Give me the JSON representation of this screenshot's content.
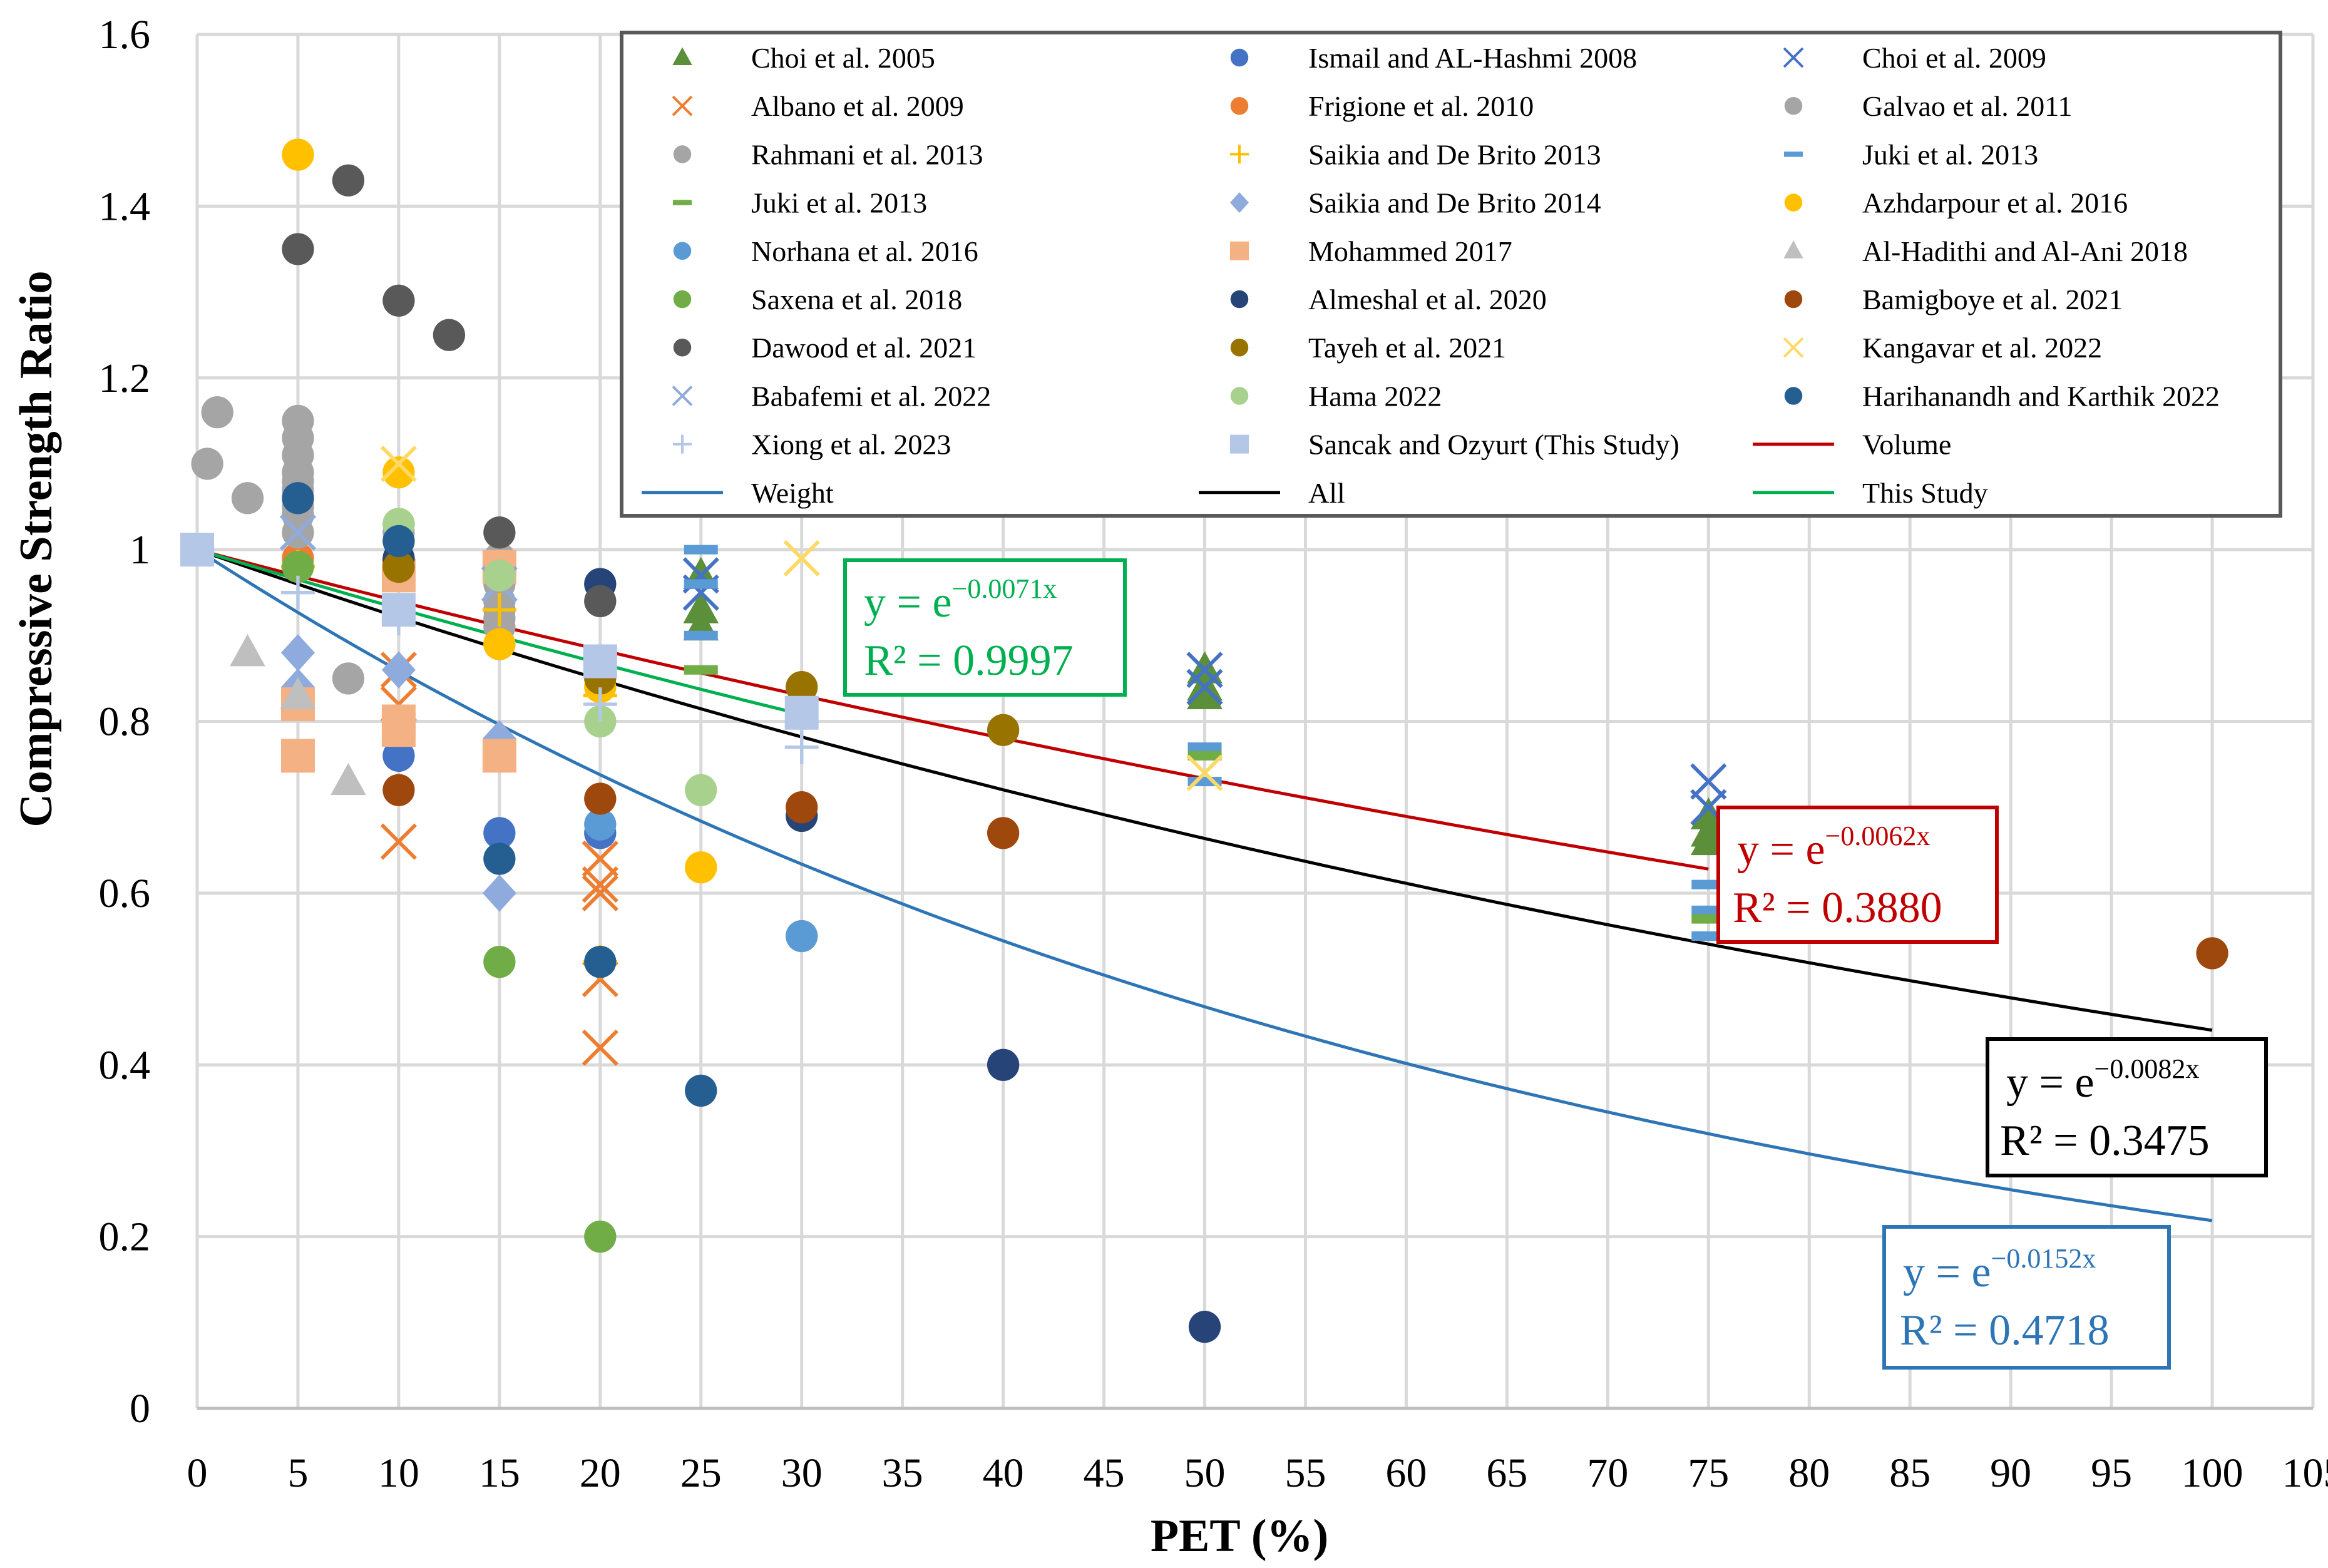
{
  "chart_data": {
    "type": "scatter",
    "title": "",
    "xlabel": "PET (%)",
    "ylabel": "Compressive Strength Ratio",
    "xlim": [
      0,
      105
    ],
    "ylim": [
      0,
      1.6
    ],
    "x_ticks": [
      "0",
      "5",
      "10",
      "15",
      "20",
      "25",
      "30",
      "35",
      "40",
      "45",
      "50",
      "55",
      "60",
      "65",
      "70",
      "75",
      "80",
      "85",
      "90",
      "95",
      "100",
      "105"
    ],
    "y_ticks": [
      "0",
      "0.2",
      "0.4",
      "0.6",
      "0.8",
      "1",
      "1.2",
      "1.4",
      "1.6"
    ],
    "grid": true,
    "legend_position": "top-right",
    "series": [
      {
        "name": "Choi et al. 2005",
        "marker": "triangle",
        "color": "#5b8f3a",
        "points": [
          [
            25,
            0.97
          ],
          [
            25,
            0.93
          ],
          [
            25,
            0.91
          ],
          [
            50,
            0.86
          ],
          [
            50,
            0.84
          ],
          [
            50,
            0.83
          ],
          [
            75,
            0.69
          ],
          [
            75,
            0.67
          ],
          [
            75,
            0.66
          ]
        ]
      },
      {
        "name": "Ismail and AL-Hashmi 2008",
        "marker": "circle",
        "color": "#4472c4",
        "points": [
          [
            10,
            0.76
          ],
          [
            15,
            0.67
          ],
          [
            20,
            0.67
          ]
        ]
      },
      {
        "name": "Choi et al. 2009",
        "marker": "x",
        "color": "#4472c4",
        "points": [
          [
            25,
            0.97
          ],
          [
            25,
            0.95
          ],
          [
            50,
            0.86
          ],
          [
            50,
            0.84
          ],
          [
            75,
            0.73
          ],
          [
            75,
            0.7
          ]
        ]
      },
      {
        "name": "Albano et al. 2009",
        "marker": "x",
        "color": "#ed7d31",
        "points": [
          [
            10,
            0.86
          ],
          [
            10,
            0.82
          ],
          [
            10,
            0.66
          ],
          [
            20,
            0.64
          ],
          [
            20,
            0.61
          ],
          [
            20,
            0.6
          ],
          [
            20,
            0.5
          ],
          [
            20,
            0.42
          ]
        ]
      },
      {
        "name": "Frigione et al. 2010",
        "marker": "circle",
        "color": "#ed7d31",
        "points": [
          [
            5,
            0.99
          ],
          [
            10,
            0.98
          ]
        ]
      },
      {
        "name": "Galvao et al. 2011",
        "marker": "circle",
        "color": "#a5a5a5",
        "points": [
          [
            0.5,
            1.1
          ],
          [
            1,
            1.16
          ],
          [
            2.5,
            1.06
          ],
          [
            5,
            1.15
          ],
          [
            5,
            1.13
          ],
          [
            5,
            1.11
          ],
          [
            5,
            1.09
          ],
          [
            5,
            1.07
          ],
          [
            5,
            1.05
          ],
          [
            5,
            1.02
          ],
          [
            7.5,
            0.85
          ],
          [
            10,
            1.03
          ],
          [
            10,
            1.01
          ],
          [
            15,
            0.99
          ],
          [
            15,
            0.96
          ],
          [
            15,
            0.93
          ],
          [
            15,
            0.91
          ],
          [
            15,
            0.89
          ]
        ]
      },
      {
        "name": "Rahmani et al. 2013",
        "marker": "circle",
        "color": "#a5a5a5",
        "points": [
          [
            5,
            1.08
          ],
          [
            5,
            1.04
          ],
          [
            10,
            1.02
          ],
          [
            15,
            0.94
          ],
          [
            15,
            0.92
          ]
        ]
      },
      {
        "name": "Saikia and De Brito 2013",
        "marker": "plus",
        "color": "#ffc000",
        "points": [
          [
            5,
            0.98
          ],
          [
            15,
            0.93
          ],
          [
            20,
            0.83
          ],
          [
            20,
            0.52
          ]
        ]
      },
      {
        "name": "Juki et al. 2013",
        "marker": "dash",
        "color": "#5b9bd5",
        "points": [
          [
            25,
            1.0
          ],
          [
            25,
            0.96
          ],
          [
            25,
            0.9
          ],
          [
            50,
            0.77
          ],
          [
            50,
            0.73
          ],
          [
            75,
            0.61
          ],
          [
            75,
            0.58
          ],
          [
            75,
            0.55
          ]
        ]
      },
      {
        "name": "Juki et al. 2013",
        "marker": "dash",
        "color": "#70ad47",
        "points": [
          [
            25,
            0.86
          ],
          [
            50,
            0.76
          ],
          [
            75,
            0.57
          ]
        ]
      },
      {
        "name": "Saikia and De Brito 2014",
        "marker": "diamond",
        "color": "#8faadc",
        "points": [
          [
            5,
            0.88
          ],
          [
            5,
            0.84
          ],
          [
            10,
            0.86
          ],
          [
            15,
            0.78
          ],
          [
            15,
            0.6
          ]
        ]
      },
      {
        "name": "Azhdarpour et al. 2016",
        "marker": "circle",
        "color": "#ffc000",
        "points": [
          [
            5,
            1.46
          ],
          [
            10,
            1.09
          ],
          [
            15,
            0.89
          ],
          [
            20,
            0.84
          ],
          [
            25,
            0.63
          ],
          [
            30,
            0.55
          ]
        ]
      },
      {
        "name": "Norhana et al. 2016",
        "marker": "circle",
        "color": "#5b9bd5",
        "points": [
          [
            20,
            0.68
          ],
          [
            30,
            0.55
          ]
        ]
      },
      {
        "name": "Mohammed 2017",
        "marker": "square",
        "color": "#f4b183",
        "points": [
          [
            5,
            0.82
          ],
          [
            5,
            0.76
          ],
          [
            10,
            0.97
          ],
          [
            10,
            0.8
          ],
          [
            10,
            0.79
          ],
          [
            15,
            0.98
          ],
          [
            15,
            0.76
          ]
        ]
      },
      {
        "name": "Al-Hadithi and Al-Ani 2018",
        "marker": "triangle",
        "color": "#bfbfbf",
        "points": [
          [
            2.5,
            0.88
          ],
          [
            5,
            0.83
          ],
          [
            7.5,
            0.73
          ]
        ]
      },
      {
        "name": "Saxena et al. 2018",
        "marker": "circle",
        "color": "#70ad47",
        "points": [
          [
            5,
            0.98
          ],
          [
            15,
            0.52
          ],
          [
            20,
            0.2
          ]
        ]
      },
      {
        "name": "Almeshal et al. 2020",
        "marker": "circle",
        "color": "#264478",
        "points": [
          [
            10,
            0.99
          ],
          [
            20,
            0.96
          ],
          [
            30,
            0.69
          ],
          [
            40,
            0.4
          ],
          [
            50,
            0.095
          ]
        ]
      },
      {
        "name": "Bamigboye et al. 2021",
        "marker": "circle",
        "color": "#9e480e",
        "points": [
          [
            10,
            0.72
          ],
          [
            20,
            0.71
          ],
          [
            30,
            0.7
          ],
          [
            40,
            0.67
          ],
          [
            100,
            0.53
          ]
        ]
      },
      {
        "name": "Dawood et al. 2021",
        "marker": "circle",
        "color": "#595959",
        "points": [
          [
            5,
            1.35
          ],
          [
            7.5,
            1.43
          ],
          [
            10,
            1.29
          ],
          [
            12.5,
            1.25
          ],
          [
            15,
            1.02
          ],
          [
            20,
            0.94
          ]
        ]
      },
      {
        "name": "Tayeh et al. 2021",
        "marker": "circle",
        "color": "#997300",
        "points": [
          [
            10,
            0.98
          ],
          [
            20,
            0.85
          ],
          [
            30,
            0.84
          ],
          [
            40,
            0.79
          ]
        ]
      },
      {
        "name": "Kangavar et al. 2022",
        "marker": "x",
        "color": "#ffd966",
        "points": [
          [
            10,
            1.1
          ],
          [
            30,
            0.99
          ],
          [
            50,
            0.74
          ]
        ]
      },
      {
        "name": "Babafemi et al. 2022",
        "marker": "x",
        "color": "#8faadc",
        "points": [
          [
            5,
            1.02
          ],
          [
            15,
            0.96
          ]
        ]
      },
      {
        "name": "Hama 2022",
        "marker": "circle",
        "color": "#a9d18e",
        "points": [
          [
            10,
            1.03
          ],
          [
            15,
            0.97
          ],
          [
            20,
            0.8
          ],
          [
            25,
            0.72
          ]
        ]
      },
      {
        "name": "Harihanandh and Karthik 2022",
        "marker": "circle",
        "color": "#255e91",
        "points": [
          [
            5,
            1.06
          ],
          [
            10,
            1.01
          ],
          [
            15,
            0.64
          ],
          [
            20,
            0.52
          ],
          [
            25,
            0.37
          ]
        ]
      },
      {
        "name": "Xiong et al. 2023",
        "marker": "plus",
        "color": "#b4c7e7",
        "points": [
          [
            5,
            0.95
          ],
          [
            10,
            0.92
          ],
          [
            20,
            0.82
          ],
          [
            30,
            0.77
          ]
        ]
      },
      {
        "name": "Sancak and Ozyurt (This Study)",
        "marker": "square",
        "color": "#b4c7e7",
        "points": [
          [
            0,
            1.0
          ],
          [
            10,
            0.93
          ],
          [
            20,
            0.87
          ],
          [
            30,
            0.81
          ]
        ]
      }
    ],
    "trendlines": [
      {
        "name": "Volume",
        "color": "#c00000",
        "k": -0.0062,
        "x_range": [
          0,
          75
        ],
        "equation": "y = e",
        "exponent": "−0.0062x",
        "r2": "R² = 0.3880"
      },
      {
        "name": "Weight",
        "color": "#2e75b6",
        "k": -0.0152,
        "x_range": [
          0,
          100
        ],
        "equation": "y = e",
        "exponent": "−0.0152x",
        "r2": "R² = 0.4718"
      },
      {
        "name": "All",
        "color": "#000000",
        "k": -0.0082,
        "x_range": [
          0,
          100
        ],
        "equation": "y = e",
        "exponent": "−0.0082x",
        "r2": "R² = 0.3475"
      },
      {
        "name": "This Study",
        "color": "#00b050",
        "k": -0.0071,
        "x_range": [
          0,
          30
        ],
        "equation": "y = e",
        "exponent": "−0.0071x",
        "r2": "R² = 0.9997"
      }
    ]
  },
  "legend_line_labels": {
    "volume": "Volume",
    "weight": "Weight",
    "all": "All",
    "this_study": "This Study"
  }
}
